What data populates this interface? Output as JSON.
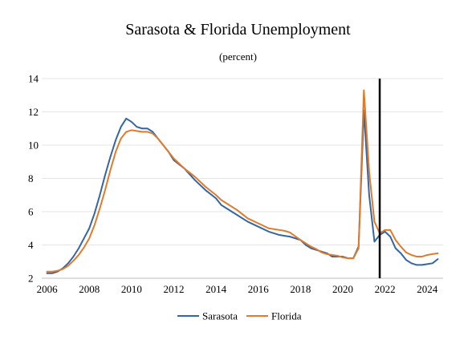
{
  "chart_data": {
    "type": "line",
    "title": "Sarasota & Florida Unemployment",
    "subtitle": "(percent)",
    "xlabel": "",
    "ylabel": "",
    "xlim": [
      2005.75,
      2024.75
    ],
    "ylim": [
      2,
      14
    ],
    "x_ticks": [
      2006,
      2008,
      2010,
      2012,
      2014,
      2016,
      2018,
      2020,
      2022,
      2024
    ],
    "y_ticks": [
      2,
      4,
      6,
      8,
      10,
      12,
      14
    ],
    "grid": "horizontal",
    "legend_position": "bottom",
    "marker_line": {
      "x": 2021.75,
      "color": "#000000"
    },
    "series": [
      {
        "name": "Sarasota",
        "color": "#3465a4",
        "x": [
          2006.0,
          2006.25,
          2006.5,
          2006.75,
          2007.0,
          2007.25,
          2007.5,
          2007.75,
          2008.0,
          2008.25,
          2008.5,
          2008.75,
          2009.0,
          2009.25,
          2009.5,
          2009.75,
          2010.0,
          2010.25,
          2010.5,
          2010.75,
          2011.0,
          2011.25,
          2011.5,
          2011.75,
          2012.0,
          2012.5,
          2013.0,
          2013.5,
          2014.0,
          2014.25,
          2014.5,
          2015.0,
          2015.5,
          2016.0,
          2016.5,
          2017.0,
          2017.25,
          2017.5,
          2018.0,
          2018.25,
          2018.5,
          2018.75,
          2019.0,
          2019.25,
          2019.5,
          2019.75,
          2020.0,
          2020.25,
          2020.5,
          2020.75,
          2021.0,
          2021.25,
          2021.5,
          2021.75,
          2022.0,
          2022.25,
          2022.5,
          2022.75,
          2023.0,
          2023.25,
          2023.5,
          2023.75,
          2024.0,
          2024.25,
          2024.5
        ],
        "values": [
          2.3,
          2.3,
          2.4,
          2.6,
          2.9,
          3.3,
          3.8,
          4.4,
          5.0,
          5.9,
          7.0,
          8.2,
          9.3,
          10.3,
          11.1,
          11.6,
          11.4,
          11.1,
          11.0,
          11.0,
          10.8,
          10.4,
          10.0,
          9.6,
          9.1,
          8.6,
          7.9,
          7.3,
          6.8,
          6.4,
          6.2,
          5.8,
          5.4,
          5.1,
          4.8,
          4.6,
          4.55,
          4.5,
          4.3,
          4.0,
          3.8,
          3.7,
          3.6,
          3.5,
          3.3,
          3.3,
          3.3,
          3.2,
          3.2,
          3.9,
          12.1,
          7.0,
          4.2,
          4.6,
          4.8,
          4.5,
          3.8,
          3.5,
          3.1,
          2.9,
          2.8,
          2.8,
          2.85,
          2.9,
          3.15
        ]
      },
      {
        "name": "Florida",
        "color": "#e07b2b",
        "x": [
          2006.0,
          2006.25,
          2006.5,
          2006.75,
          2007.0,
          2007.25,
          2007.5,
          2007.75,
          2008.0,
          2008.25,
          2008.5,
          2008.75,
          2009.0,
          2009.25,
          2009.5,
          2009.75,
          2010.0,
          2010.25,
          2010.5,
          2010.75,
          2011.0,
          2011.25,
          2011.5,
          2011.75,
          2012.0,
          2012.5,
          2013.0,
          2013.5,
          2014.0,
          2014.25,
          2014.5,
          2015.0,
          2015.5,
          2016.0,
          2016.5,
          2017.0,
          2017.25,
          2017.5,
          2018.0,
          2018.25,
          2018.5,
          2018.75,
          2019.0,
          2019.25,
          2019.5,
          2019.75,
          2020.0,
          2020.25,
          2020.5,
          2020.75,
          2021.0,
          2021.25,
          2021.5,
          2021.75,
          2022.0,
          2022.25,
          2022.5,
          2022.75,
          2023.0,
          2023.25,
          2023.5,
          2023.75,
          2024.0,
          2024.25,
          2024.5
        ],
        "values": [
          2.4,
          2.4,
          2.45,
          2.55,
          2.75,
          3.05,
          3.4,
          3.85,
          4.4,
          5.2,
          6.2,
          7.3,
          8.5,
          9.6,
          10.4,
          10.8,
          10.9,
          10.85,
          10.8,
          10.8,
          10.7,
          10.4,
          10.0,
          9.6,
          9.2,
          8.6,
          8.1,
          7.5,
          7.0,
          6.7,
          6.5,
          6.1,
          5.6,
          5.3,
          5.0,
          4.9,
          4.85,
          4.75,
          4.3,
          4.1,
          3.9,
          3.75,
          3.55,
          3.45,
          3.4,
          3.35,
          3.25,
          3.2,
          3.2,
          3.8,
          13.3,
          8.4,
          5.4,
          4.7,
          4.9,
          4.9,
          4.3,
          3.9,
          3.55,
          3.4,
          3.3,
          3.3,
          3.4,
          3.45,
          3.5
        ]
      }
    ]
  }
}
